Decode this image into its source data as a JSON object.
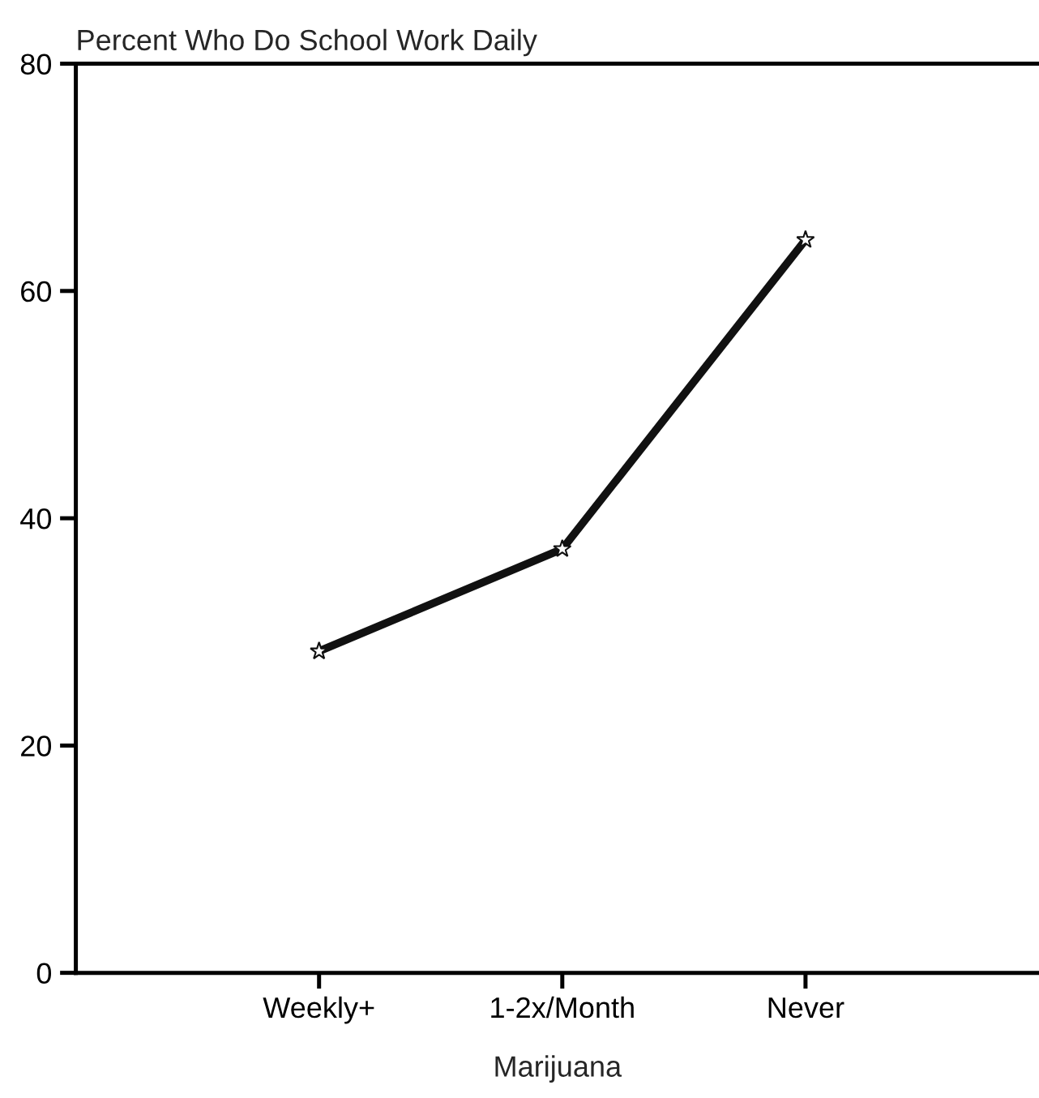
{
  "chart_data": {
    "type": "line",
    "title": "Percent Who Do School Work Daily",
    "xlabel": "Marijuana",
    "categories": [
      "Weekly+",
      "1-2x/Month",
      "Never"
    ],
    "series": [
      {
        "color": "#111111",
        "values": [
          28.3,
          37.3,
          64.5
        ]
      }
    ],
    "ylim": [
      0,
      80
    ],
    "yticks": [
      0,
      20,
      40,
      60,
      80
    ],
    "grid": false,
    "marker": "star",
    "line_style": "solid"
  }
}
